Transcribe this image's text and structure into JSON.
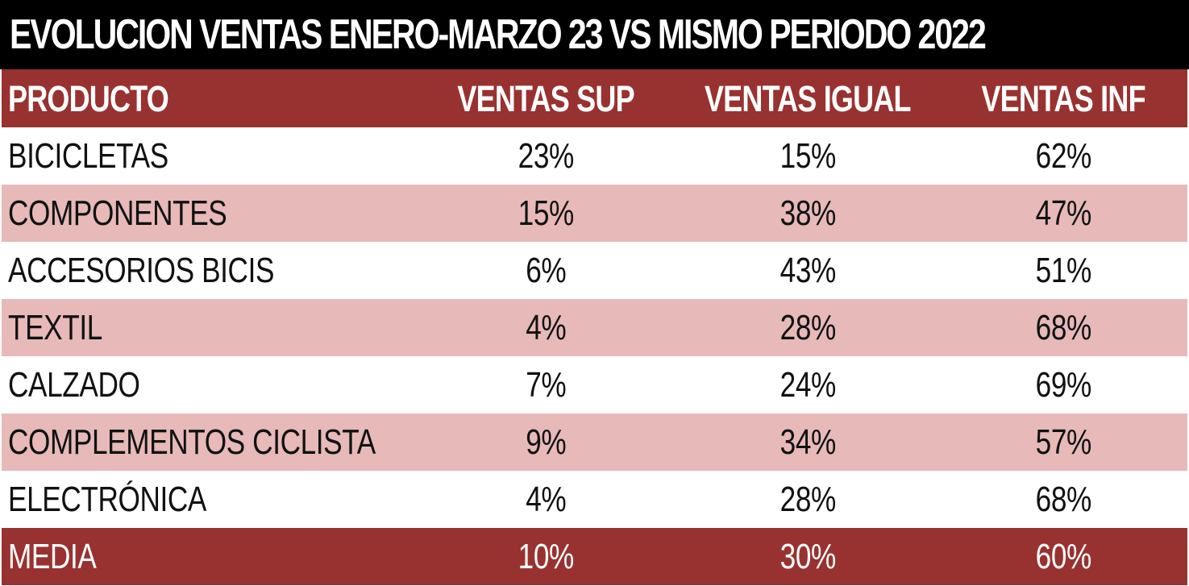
{
  "title": "EVOLUCION VENTAS ENERO-MARZO 23 VS MISMO PERIODO 2022",
  "colors": {
    "title_bg": "#000000",
    "header_bg": "#983230",
    "stripe_bg": "#e7b9b9",
    "white_bg": "#ffffff"
  },
  "headers": {
    "producto": "PRODUCTO",
    "ventas_sup": "VENTAS SUP",
    "ventas_igual": "VENTAS IGUAL",
    "ventas_inf": "VENTAS INF"
  },
  "rows": [
    {
      "producto": "BICICLETAS",
      "ventas_sup": "23%",
      "ventas_igual": "15%",
      "ventas_inf": "62%"
    },
    {
      "producto": "COMPONENTES",
      "ventas_sup": "15%",
      "ventas_igual": "38%",
      "ventas_inf": "47%"
    },
    {
      "producto": "ACCESORIOS BICIS",
      "ventas_sup": "6%",
      "ventas_igual": "43%",
      "ventas_inf": "51%"
    },
    {
      "producto": "TEXTIL",
      "ventas_sup": "4%",
      "ventas_igual": "28%",
      "ventas_inf": "68%"
    },
    {
      "producto": "CALZADO",
      "ventas_sup": "7%",
      "ventas_igual": "24%",
      "ventas_inf": "69%"
    },
    {
      "producto": "COMPLEMENTOS CICLISTA",
      "ventas_sup": "9%",
      "ventas_igual": "34%",
      "ventas_inf": "57%"
    },
    {
      "producto": "ELECTRÓNICA",
      "ventas_sup": "4%",
      "ventas_igual": "28%",
      "ventas_inf": "68%"
    }
  ],
  "total": {
    "producto": "MEDIA",
    "ventas_sup": "10%",
    "ventas_igual": "30%",
    "ventas_inf": "60%"
  }
}
